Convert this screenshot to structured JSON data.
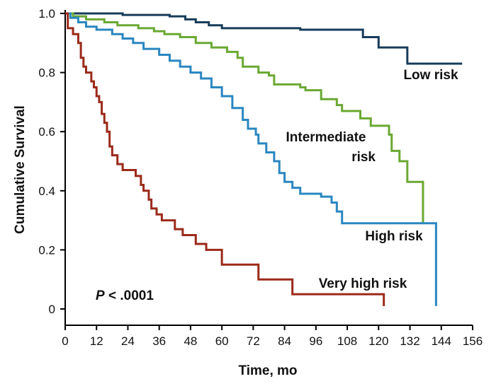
{
  "chart_data": {
    "type": "step",
    "x_label": "Time, mo",
    "y_label": "Cumulative Survival",
    "xlim": [
      0,
      156
    ],
    "xticks": [
      0,
      12,
      24,
      36,
      48,
      60,
      72,
      84,
      96,
      108,
      120,
      132,
      144,
      156
    ],
    "ylim": [
      -0.055,
      1
    ],
    "yticks": [
      0,
      0.2,
      0.4,
      0.6,
      0.8,
      {
        "value": 1,
        "label": "1.0"
      }
    ],
    "series": [
      {
        "name": "Low risk",
        "color": "#173c5a",
        "x": [
          0,
          22,
          40,
          46,
          50,
          55,
          60,
          90,
          114,
          120,
          131,
          152
        ],
        "values": [
          1,
          0.995,
          0.99,
          0.98,
          0.97,
          0.96,
          0.95,
          0.945,
          0.92,
          0.885,
          0.83,
          0.83
        ]
      },
      {
        "name": [
          "Intermediate",
          "risk"
        ],
        "color": "#6aa832",
        "x": [
          0,
          3,
          8,
          15,
          20,
          28,
          34,
          38,
          44,
          50,
          56,
          62,
          66,
          68,
          74,
          78,
          80,
          90,
          92,
          98,
          104,
          106,
          113,
          117,
          124,
          125,
          128,
          131,
          137
        ],
        "values": [
          1,
          0.99,
          0.98,
          0.97,
          0.96,
          0.95,
          0.94,
          0.93,
          0.92,
          0.9,
          0.885,
          0.87,
          0.85,
          0.82,
          0.8,
          0.79,
          0.76,
          0.75,
          0.74,
          0.71,
          0.69,
          0.67,
          0.645,
          0.62,
          0.59,
          0.535,
          0.5,
          0.43,
          0.29
        ]
      },
      {
        "name": "High risk",
        "color": "#2a87c0",
        "x": [
          0,
          2,
          5,
          8,
          12,
          18,
          22,
          26,
          30,
          36,
          40,
          44,
          48,
          52,
          56,
          60,
          64,
          68,
          70,
          73,
          74,
          77,
          80,
          82,
          84,
          87,
          90,
          98,
          102,
          104,
          106,
          142
        ],
        "values": [
          1,
          0.985,
          0.97,
          0.955,
          0.945,
          0.93,
          0.915,
          0.9,
          0.88,
          0.86,
          0.84,
          0.82,
          0.8,
          0.78,
          0.75,
          0.72,
          0.68,
          0.64,
          0.61,
          0.59,
          0.56,
          0.53,
          0.5,
          0.46,
          0.43,
          0.41,
          0.39,
          0.38,
          0.36,
          0.33,
          0.29,
          0.01
        ]
      },
      {
        "name": "Very high risk",
        "color": "#9b2a1a",
        "x": [
          0,
          1,
          3,
          5,
          6,
          7,
          8,
          10,
          11,
          12,
          13,
          14,
          15,
          16,
          17,
          18,
          20,
          22,
          27,
          29,
          30,
          32,
          33,
          35,
          37,
          42,
          45,
          50,
          54,
          60,
          74,
          87,
          122
        ],
        "values": [
          1,
          0.95,
          0.93,
          0.9,
          0.85,
          0.82,
          0.8,
          0.77,
          0.75,
          0.72,
          0.7,
          0.66,
          0.63,
          0.6,
          0.55,
          0.52,
          0.49,
          0.47,
          0.45,
          0.42,
          0.4,
          0.37,
          0.34,
          0.32,
          0.3,
          0.27,
          0.25,
          0.22,
          0.2,
          0.15,
          0.1,
          0.05,
          0.01
        ]
      }
    ],
    "p_value": {
      "symbol": "P",
      "text": "< .0001"
    }
  }
}
